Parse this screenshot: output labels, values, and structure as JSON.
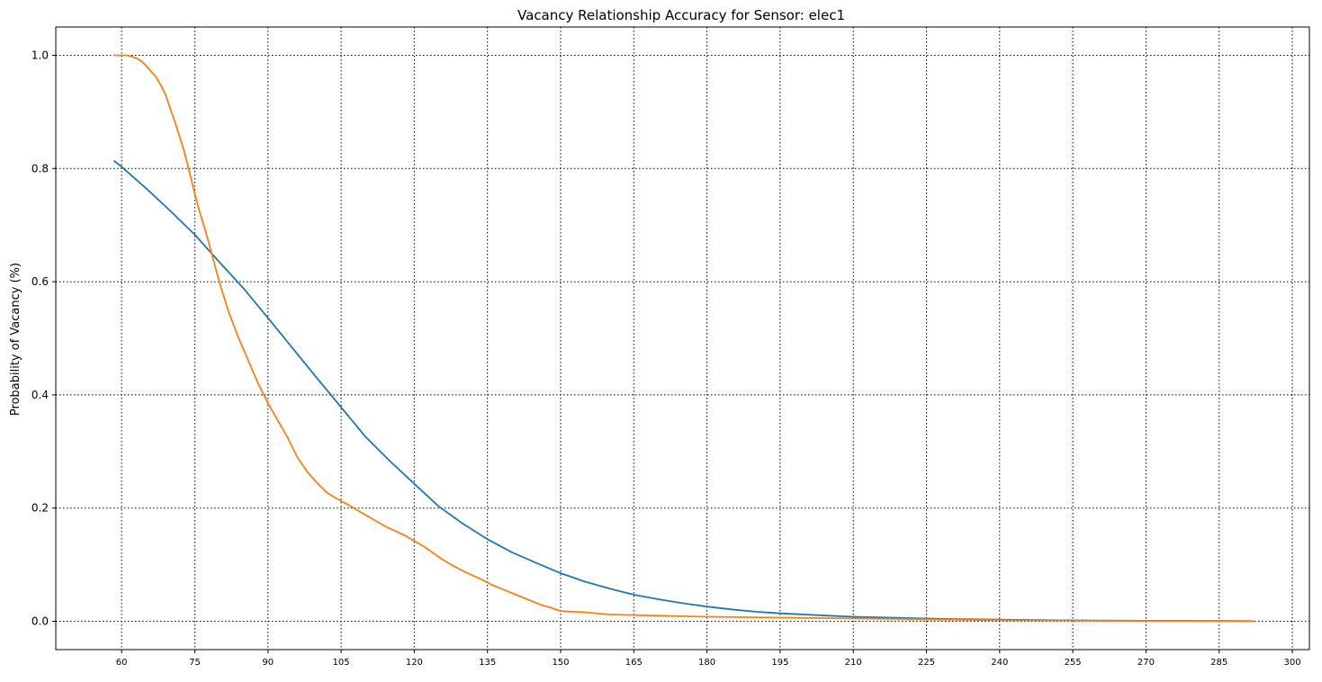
{
  "chart_data": {
    "type": "line",
    "title": "Vacancy Relationship Accuracy for Sensor: elec1",
    "xlabel": "",
    "ylabel": "Probability of Vacancy (%)",
    "xlim": [
      46.5,
      303.5
    ],
    "ylim": [
      -0.05,
      1.05
    ],
    "xticks": [
      60,
      75,
      90,
      105,
      120,
      135,
      150,
      165,
      180,
      195,
      210,
      225,
      240,
      255,
      270,
      285,
      300
    ],
    "yticks": [
      0.0,
      0.2,
      0.4,
      0.6,
      0.8,
      1.0
    ],
    "ytick_labels": [
      "0.0",
      "0.2",
      "0.4",
      "0.6",
      "0.8",
      "1.0"
    ],
    "grid": true,
    "legend": null,
    "series": [
      {
        "color": "#1f77b4",
        "x": [
          58.5,
          60,
          65,
          70,
          75,
          80,
          85,
          90,
          95,
          100,
          105,
          110,
          115,
          120,
          125,
          130,
          135,
          140,
          145,
          150,
          155,
          160,
          165,
          170,
          175,
          180,
          185,
          190,
          195,
          200,
          205,
          210,
          220,
          230,
          240,
          250,
          260,
          270,
          280,
          290,
          292
        ],
        "y": [
          0.813,
          0.803,
          0.765,
          0.725,
          0.683,
          0.635,
          0.588,
          0.536,
          0.483,
          0.43,
          0.378,
          0.326,
          0.283,
          0.243,
          0.203,
          0.172,
          0.145,
          0.122,
          0.103,
          0.085,
          0.07,
          0.058,
          0.047,
          0.039,
          0.032,
          0.026,
          0.021,
          0.017,
          0.014,
          0.012,
          0.01,
          0.008,
          0.006,
          0.004,
          0.003,
          0.002,
          0.0015,
          0.001,
          0.0008,
          0.0005,
          0.0004
        ]
      },
      {
        "color": "#ff7f0e",
        "x": [
          58.5,
          60,
          61,
          62,
          63,
          64,
          65,
          66,
          67,
          68,
          69,
          70,
          71,
          72,
          73,
          74,
          75,
          76,
          77,
          78,
          79,
          80,
          82,
          84,
          86,
          88,
          90,
          92,
          94,
          96,
          98,
          100,
          102,
          104,
          106,
          108,
          110,
          112,
          114,
          116,
          118,
          120,
          122,
          124,
          126,
          128,
          130,
          132,
          134,
          136,
          138,
          140,
          142,
          144,
          146,
          148,
          150,
          155,
          160,
          165,
          170,
          175,
          180,
          190,
          200,
          210,
          220,
          230,
          240,
          250,
          260,
          270,
          280,
          292
        ],
        "y": [
          1.0,
          1.0,
          1.0,
          0.998,
          0.995,
          0.99,
          0.982,
          0.972,
          0.962,
          0.948,
          0.93,
          0.905,
          0.88,
          0.853,
          0.825,
          0.79,
          0.755,
          0.723,
          0.695,
          0.665,
          0.632,
          0.6,
          0.545,
          0.5,
          0.46,
          0.42,
          0.385,
          0.355,
          0.325,
          0.29,
          0.265,
          0.245,
          0.228,
          0.217,
          0.208,
          0.198,
          0.188,
          0.178,
          0.168,
          0.16,
          0.152,
          0.142,
          0.132,
          0.12,
          0.108,
          0.098,
          0.089,
          0.081,
          0.073,
          0.064,
          0.057,
          0.05,
          0.043,
          0.036,
          0.029,
          0.024,
          0.018,
          0.016,
          0.012,
          0.011,
          0.01,
          0.009,
          0.008,
          0.007,
          0.006,
          0.005,
          0.004,
          0.003,
          0.002,
          0.0015,
          0.001,
          0.0008,
          0.0005,
          0.0003
        ]
      }
    ]
  }
}
